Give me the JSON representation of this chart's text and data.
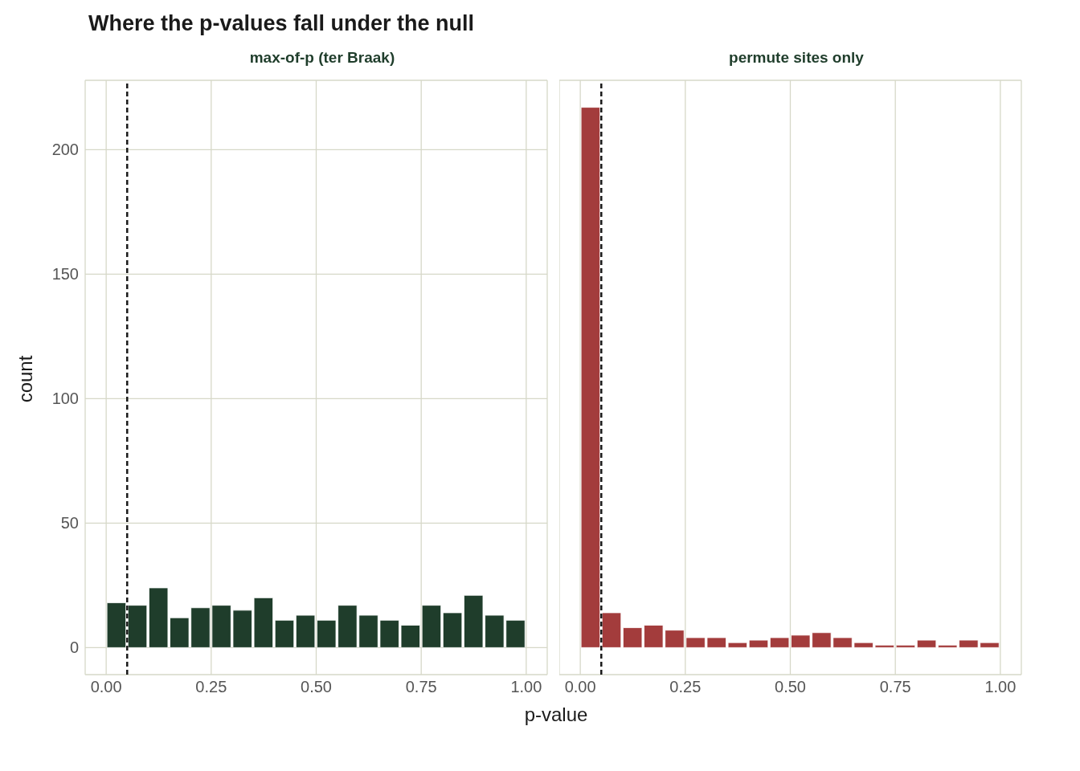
{
  "chart_data": [
    {
      "type": "histogram",
      "title": "Where the p-values fall under the null",
      "subtitle": "max-of-p (ter Braak)",
      "xlabel": "p-value",
      "ylabel": "count",
      "color": "#1f3d2b",
      "bins": [
        0,
        0.05,
        0.1,
        0.15,
        0.2,
        0.25,
        0.3,
        0.35,
        0.4,
        0.45,
        0.5,
        0.55,
        0.6,
        0.65,
        0.7,
        0.75,
        0.8,
        0.85,
        0.9,
        0.95,
        1
      ],
      "values": [
        18,
        17,
        24,
        12,
        16,
        17,
        15,
        20,
        11,
        13,
        11,
        17,
        13,
        11,
        9,
        17,
        14,
        21,
        13,
        11
      ],
      "xlim": [
        -0.05,
        1.05
      ],
      "xticks": [
        {
          "value": 0,
          "label": "0.00"
        },
        {
          "value": 0.25,
          "label": "0.25"
        },
        {
          "value": 0.5,
          "label": "0.50"
        },
        {
          "value": 0.75,
          "label": "0.75"
        },
        {
          "value": 1,
          "label": "1.00"
        }
      ],
      "ylim": [
        -10.85,
        227.85
      ],
      "yticks": [
        0,
        50,
        100,
        150,
        200
      ],
      "grid": true,
      "ref_lines": [
        {
          "axis": "x",
          "value": 0.05,
          "line_style": "dashed",
          "color": "#1a1a1a"
        }
      ]
    },
    {
      "type": "histogram",
      "subtitle": "permute sites only",
      "color": "#a33c3c",
      "bins": [
        0,
        0.05,
        0.1,
        0.15,
        0.2,
        0.25,
        0.3,
        0.35,
        0.4,
        0.45,
        0.5,
        0.55,
        0.6,
        0.65,
        0.7,
        0.75,
        0.8,
        0.85,
        0.9,
        0.95,
        1
      ],
      "values": [
        217,
        14,
        8,
        9,
        7,
        4,
        4,
        2,
        3,
        4,
        5,
        6,
        4,
        2,
        1,
        1,
        3,
        1,
        3,
        2
      ],
      "xlim": [
        -0.05,
        1.05
      ],
      "xticks": [
        {
          "value": 0,
          "label": "0.00"
        },
        {
          "value": 0.25,
          "label": "0.25"
        },
        {
          "value": 0.5,
          "label": "0.50"
        },
        {
          "value": 0.75,
          "label": "0.75"
        },
        {
          "value": 1,
          "label": "1.00"
        }
      ],
      "ylim": [
        -10.85,
        227.85
      ],
      "yticks": [
        0,
        50,
        100,
        150,
        200
      ],
      "grid": true,
      "tick_labels": "x",
      "ref_lines": [
        {
          "axis": "x",
          "value": 0.05,
          "line_style": "dashed",
          "color": "#1a1a1a"
        }
      ]
    }
  ]
}
